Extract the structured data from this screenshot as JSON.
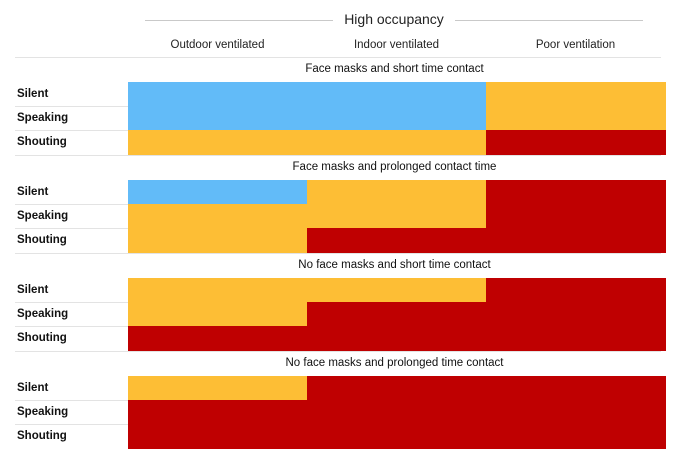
{
  "chart_data": {
    "type": "heatmap",
    "title": "High occupancy",
    "columns": [
      "Outdoor ventilated",
      "Indoor ventilated",
      "Poor ventilation"
    ],
    "rows": [
      "Silent",
      "Speaking",
      "Shouting"
    ],
    "colors": {
      "low": "#62bbf8",
      "medium": "#fdbe35",
      "high": "#bf0001"
    },
    "sections": [
      {
        "title": "Face masks and short time contact",
        "grid": [
          [
            "low",
            "low",
            "medium"
          ],
          [
            "low",
            "low",
            "medium"
          ],
          [
            "medium",
            "medium",
            "high"
          ]
        ]
      },
      {
        "title": "Face masks and prolonged contact time",
        "grid": [
          [
            "low",
            "medium",
            "high"
          ],
          [
            "medium",
            "medium",
            "high"
          ],
          [
            "medium",
            "high",
            "high"
          ]
        ]
      },
      {
        "title": "No face masks and short time contact",
        "grid": [
          [
            "medium",
            "medium",
            "high"
          ],
          [
            "medium",
            "high",
            "high"
          ],
          [
            "high",
            "high",
            "high"
          ]
        ]
      },
      {
        "title": "No face masks and prolonged time contact",
        "grid": [
          [
            "medium",
            "high",
            "high"
          ],
          [
            "high",
            "high",
            "high"
          ],
          [
            "high",
            "high",
            "high"
          ]
        ]
      }
    ]
  }
}
